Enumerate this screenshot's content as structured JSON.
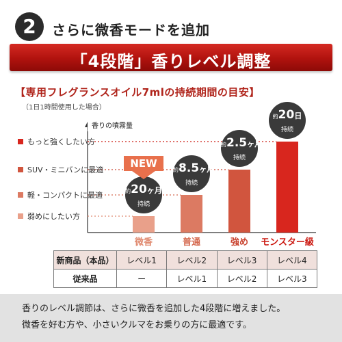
{
  "header": {
    "step_number": "2",
    "step_text": "さらに微香モードを追加",
    "banner": "「4段階」香りレベル調整"
  },
  "chart_heading": {
    "title": "【専用フレグランスオイル7mlの持続期間の目安】",
    "subtitle": "（1日1時間使用した場合）"
  },
  "chart_data": {
    "type": "bar",
    "ylabel": "香りの噴霧量",
    "categories": [
      "微香",
      "普通",
      "強め",
      "モンスター級"
    ],
    "values": [
      1,
      2,
      3,
      4
    ],
    "y_levels": [
      "弱めにしたい方",
      "軽・コンパクトに最適",
      "SUV・ミニバンに最適",
      "もっと強くしたい方"
    ],
    "durations": [
      {
        "prefix": "約",
        "number": "20",
        "unit": "ヶ月",
        "suffix": "持続"
      },
      {
        "prefix": "約",
        "number": "8.5",
        "unit": "ヶ月",
        "suffix": "持続"
      },
      {
        "prefix": "約",
        "number": "2.5",
        "unit": "ヶ月",
        "suffix": "持続"
      },
      {
        "prefix": "約",
        "number": "20",
        "unit": "日",
        "suffix": "持続"
      }
    ],
    "new_badge": "NEW",
    "colors": [
      "#e9a08a",
      "#dc7a62",
      "#d1553e",
      "#d8261e"
    ],
    "category_colors": [
      "#e08a70",
      "#d56a50",
      "#c94430",
      "#cc1a12"
    ]
  },
  "table": {
    "rows": [
      {
        "head": "新商品（本品）",
        "cells": [
          "レベル1",
          "レベル2",
          "レベル3",
          "レベル4"
        ]
      },
      {
        "head": "従来品",
        "cells": [
          "ー",
          "レベル1",
          "レベル2",
          "レベル3"
        ]
      }
    ]
  },
  "footer": {
    "line1": "香りのレベル調節は、さらに微香を追加した4段階に増えました。",
    "line2": "微香を好む方や、小さいクルマをお乗りの方に最適です。"
  }
}
